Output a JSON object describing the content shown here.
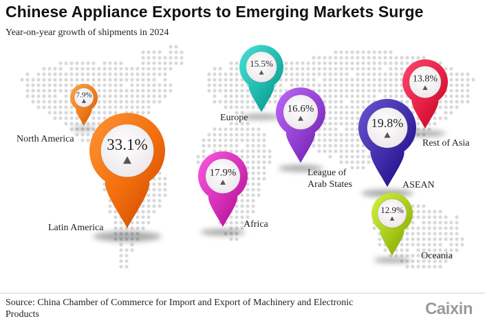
{
  "title": "Chinese Appliance Exports to Emerging Markets Surge",
  "subtitle": "Year-on-year growth of shipments in 2024",
  "source": "Source: China Chamber of Commerce for Import and Export of Machinery and Electronic Products",
  "logo": "Caixin",
  "chart_data": {
    "type": "bar",
    "encoding": "map-pins",
    "unit": "%",
    "series": [
      {
        "values": [
          7.9,
          33.1,
          15.5,
          16.6,
          17.9,
          19.8,
          13.8,
          12.9
        ]
      }
    ],
    "categories": [
      "North America",
      "Latin America",
      "Europe",
      "League of Arab States",
      "Africa",
      "ASEAN",
      "Rest of Asia",
      "Oceania"
    ],
    "labels": [
      "7.9%",
      "33.1%",
      "15.5%",
      "16.6%",
      "17.9%",
      "19.8%",
      "13.8%",
      "12.9%"
    ],
    "label_lines": [
      [
        "North America"
      ],
      [
        "Latin America"
      ],
      [
        "Europe"
      ],
      [
        "League of",
        "Arab States"
      ],
      [
        "Africa"
      ],
      [
        "ASEAN"
      ],
      [
        "Rest of Asia"
      ],
      [
        "Oceania"
      ]
    ],
    "colors": [
      "#f07d1c",
      "#f26d0c",
      "#20b9ad",
      "#9340d2",
      "#d52fb8",
      "#3f2ca8",
      "#e61f45",
      "#a8ca1a"
    ],
    "trend_marker": "up-triangle"
  }
}
